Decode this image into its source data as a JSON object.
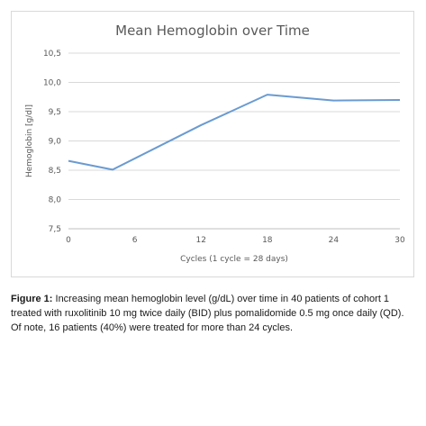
{
  "chart_data": {
    "type": "line",
    "title": "Mean Hemoglobin over Time",
    "xlabel": "Cycles (1 cycle = 28 days)",
    "ylabel": "Hemoglobin [g/dl]",
    "xlim": [
      0,
      30
    ],
    "ylim": [
      7.5,
      10.5
    ],
    "x_ticks": [
      0,
      6,
      12,
      18,
      24,
      30
    ],
    "y_ticks": [
      7.5,
      8.0,
      8.5,
      9.0,
      9.5,
      10.0,
      10.5
    ],
    "x_tick_labels": [
      "0",
      "6",
      "12",
      "18",
      "24",
      "30"
    ],
    "y_tick_labels": [
      "7,5",
      "8,0",
      "8,5",
      "9,0",
      "9,5",
      "10,0",
      "10,5"
    ],
    "grid": "horizontal",
    "series": [
      {
        "color": "#6a9bd1",
        "x": [
          0,
          4,
          12,
          18,
          24,
          30
        ],
        "y": [
          8.66,
          8.51,
          9.27,
          9.79,
          9.69,
          9.7
        ]
      }
    ]
  },
  "caption": {
    "label": "Figure 1:",
    "text": " Increasing mean hemoglobin level (g/dL) over time in 40 patients of cohort 1 treated with ruxolitinib 10 mg twice daily (BID) plus pomalidomide 0.5 mg once daily (QD). Of note, 16 patients (40%) were treated for more than 24 cycles."
  }
}
